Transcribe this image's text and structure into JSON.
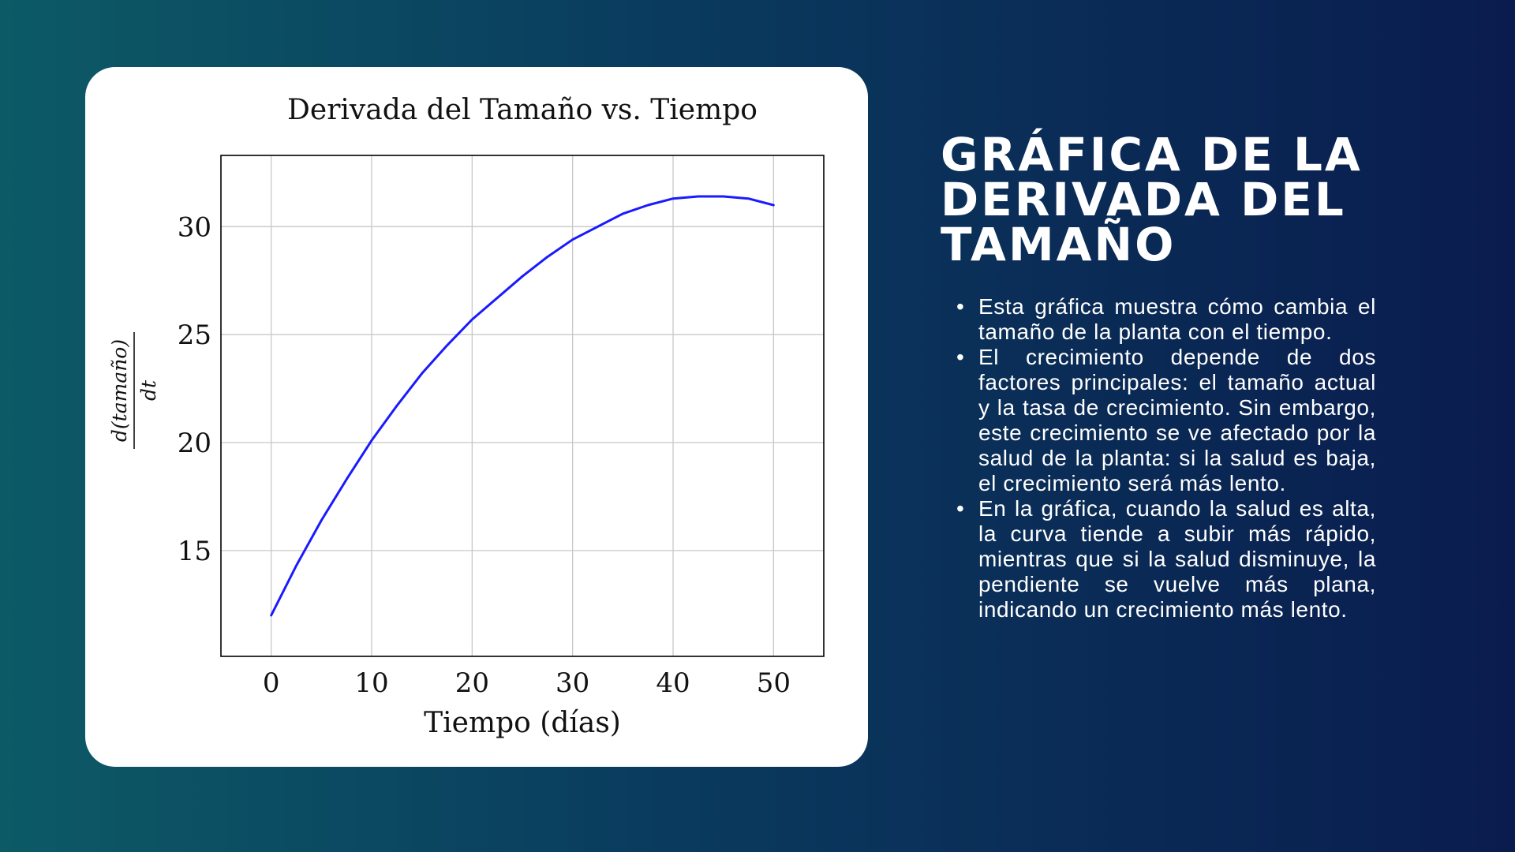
{
  "slide": {
    "title": "GRÁFICA DE LA DERIVADA DEL TAMAÑO",
    "bullets": [
      "Esta gráfica muestra cómo cambia el tamaño de la planta con el tiempo.",
      "El crecimiento depende de dos factores principales: el tamaño actual y la tasa de crecimiento. Sin embargo, este crecimiento se ve afectado por la salud de la planta: si la salud es baja, el crecimiento será más lento.",
      "En la gráfica, cuando la salud es alta, la curva tiende a subir más rápido, mientras que si la salud disminuye, la pendiente se vuelve más plana, indicando un crecimiento más lento."
    ],
    "bullet_glyph": "•"
  },
  "colors": {
    "background_left": "#0c5a66",
    "background_right": "#0a1c4e",
    "card": "#ffffff",
    "line": "#1a1aff",
    "text_right": "#ffffff"
  },
  "chart_data": {
    "type": "line",
    "title": "Derivada del Tamaño vs. Tiempo",
    "xlabel": "Tiempo (días)",
    "ylabel_numerator": "d(tamaño)",
    "ylabel_denominator": "dt",
    "xlim": [
      -5,
      55
    ],
    "ylim": [
      10.1,
      33.3
    ],
    "xticks": [
      0,
      10,
      20,
      30,
      40,
      50
    ],
    "yticks": [
      15,
      20,
      25,
      30
    ],
    "grid": true,
    "series": [
      {
        "color": "#1a1aff",
        "x": [
          0,
          2.5,
          5,
          7.5,
          10,
          12.5,
          15,
          17.5,
          20,
          22.5,
          25,
          27.5,
          30,
          32.5,
          35,
          37.5,
          40,
          42.5,
          44,
          45,
          47.5,
          50
        ],
        "y": [
          12.0,
          14.3,
          16.4,
          18.3,
          20.1,
          21.7,
          23.2,
          24.5,
          25.7,
          26.7,
          27.7,
          28.6,
          29.4,
          30.0,
          30.6,
          31.0,
          31.3,
          31.4,
          31.4,
          31.4,
          31.3,
          31.0
        ]
      }
    ]
  }
}
